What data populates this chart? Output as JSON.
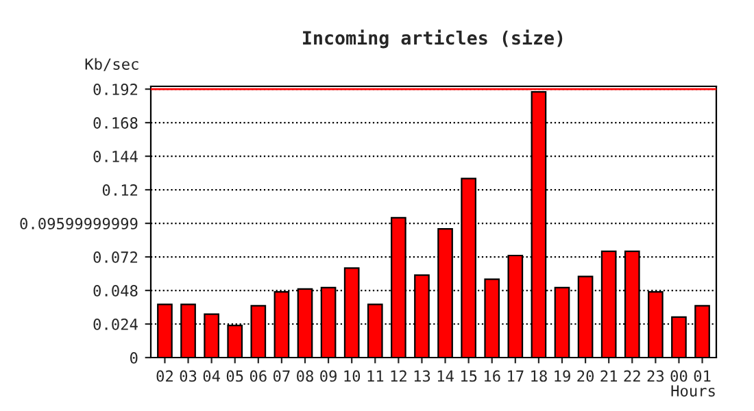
{
  "chart_data": {
    "type": "bar",
    "title": "Incoming articles (size)",
    "xlabel": "Hours",
    "ylabel": "Kb/sec",
    "categories": [
      "02",
      "03",
      "04",
      "05",
      "06",
      "07",
      "08",
      "09",
      "10",
      "11",
      "12",
      "13",
      "14",
      "15",
      "16",
      "17",
      "18",
      "19",
      "20",
      "21",
      "22",
      "23",
      "00",
      "01"
    ],
    "values": [
      0.038,
      0.038,
      0.031,
      0.023,
      0.037,
      0.047,
      0.049,
      0.05,
      0.064,
      0.038,
      0.1,
      0.059,
      0.092,
      0.128,
      0.056,
      0.073,
      0.19,
      0.05,
      0.058,
      0.076,
      0.076,
      0.047,
      0.029,
      0.037
    ],
    "color": "#ff0000",
    "ylim": [
      0,
      0.194
    ],
    "yticks": [
      0,
      0.024,
      0.048,
      0.072,
      0.09599999999,
      0.12,
      0.144,
      0.168,
      0.192
    ],
    "grid": "y",
    "line_style": "dotted",
    "ref_lines": [
      {
        "axis": "y",
        "value": 0.192,
        "color": "#ff0000"
      }
    ]
  }
}
